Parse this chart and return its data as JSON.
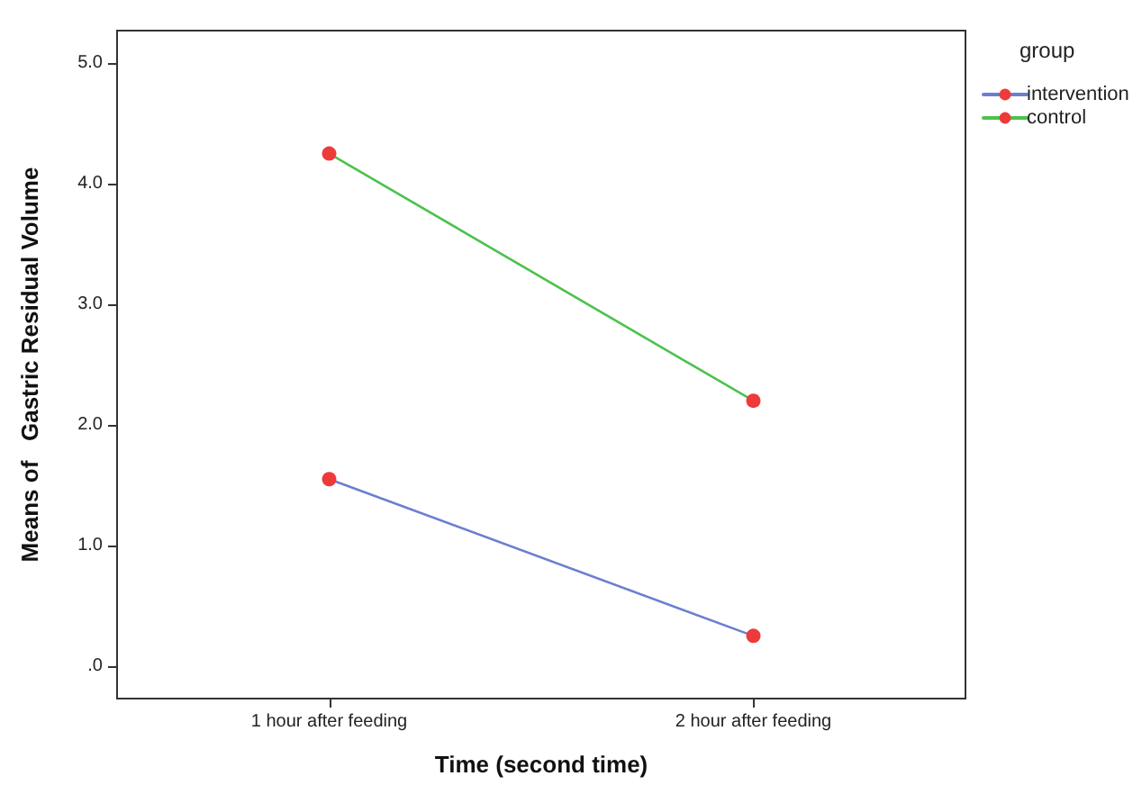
{
  "chart_data": {
    "type": "line",
    "xlabel": "Time (second time)",
    "ylabel": "Means of   Gastric Residual Volume",
    "legend_title": "group",
    "categories": [
      "1 hour after feeding",
      "2 hour after feeding"
    ],
    "series": [
      {
        "name": "intervention",
        "color": "#6b7fd0",
        "values": [
          1.55,
          0.25
        ]
      },
      {
        "name": "control",
        "color": "#4cc24c",
        "values": [
          4.25,
          2.2
        ]
      }
    ],
    "ylim": [
      -0.27,
      5.27
    ],
    "yticks": [
      {
        "value": 0,
        "label": ".0"
      },
      {
        "value": 1,
        "label": "1.0"
      },
      {
        "value": 2,
        "label": "2.0"
      },
      {
        "value": 3,
        "label": "3.0"
      },
      {
        "value": 4,
        "label": "4.0"
      },
      {
        "value": 5,
        "label": "5.0"
      }
    ],
    "grid": false,
    "legend": "top right",
    "marker": "circle",
    "line_style": "solid"
  }
}
